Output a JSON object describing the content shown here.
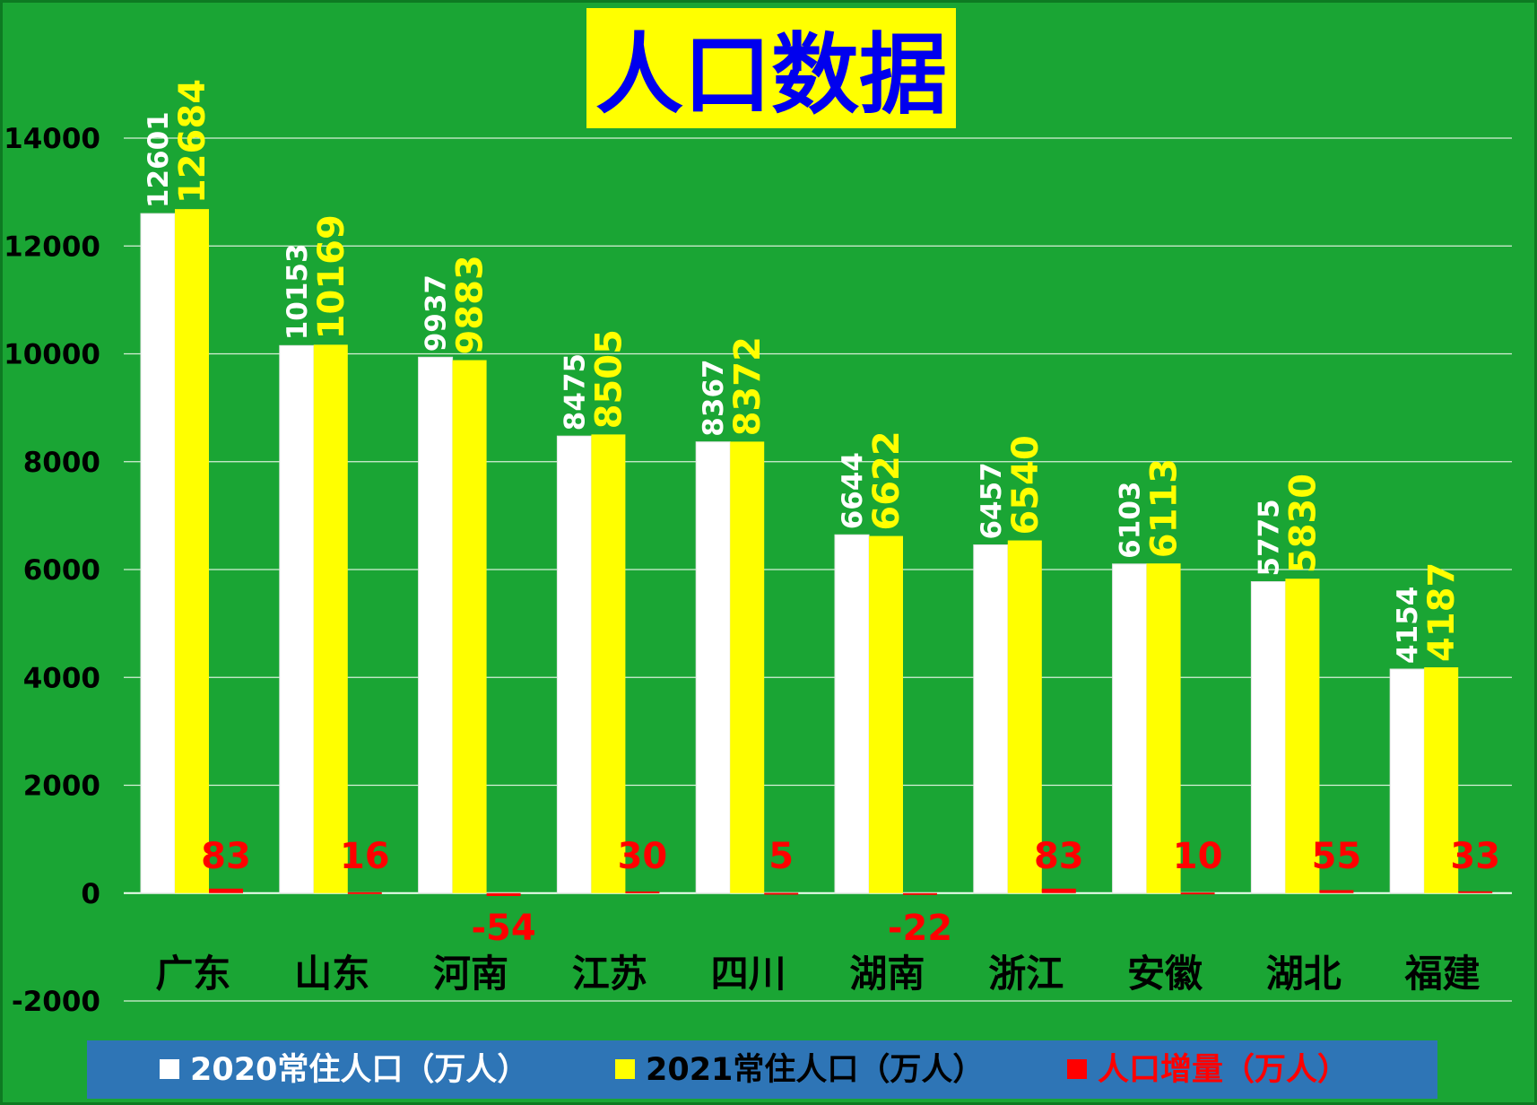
{
  "chart_data": {
    "type": "bar",
    "title": "人口数据",
    "categories": [
      "广东",
      "山东",
      "河南",
      "江苏",
      "四川",
      "湖南",
      "浙江",
      "安徽",
      "湖北",
      "福建"
    ],
    "series": [
      {
        "name": "2020常住人口（万人）",
        "color": "#ffffff",
        "label_color": "#ffffff",
        "values": [
          12601,
          10153,
          9937,
          8475,
          8367,
          6644,
          6457,
          6103,
          5775,
          4154
        ]
      },
      {
        "name": "2021常住人口（万人）",
        "color": "#ffff00",
        "label_color": "#ffff00",
        "values": [
          12684,
          10169,
          9883,
          8505,
          8372,
          6622,
          6540,
          6113,
          5830,
          4187
        ]
      },
      {
        "name": "人口增量（万人）",
        "color": "#ff0000",
        "label_color": "#ff0000",
        "values": [
          83,
          16,
          -54,
          30,
          5,
          -22,
          83,
          10,
          55,
          33
        ]
      }
    ],
    "ylim": [
      -2000,
      14000
    ],
    "yticks": [
      "-2000",
      "0",
      "2000",
      "4000",
      "6000",
      "8000",
      "10000",
      "12000",
      "14000"
    ],
    "grid": true,
    "legend_position": "bottom",
    "colors": {
      "background": "#1aa534",
      "title_box": "#ffff00",
      "title_text": "#0000ee",
      "legend_band": "#2e75b6",
      "gridline": "#d8f0d8"
    }
  }
}
